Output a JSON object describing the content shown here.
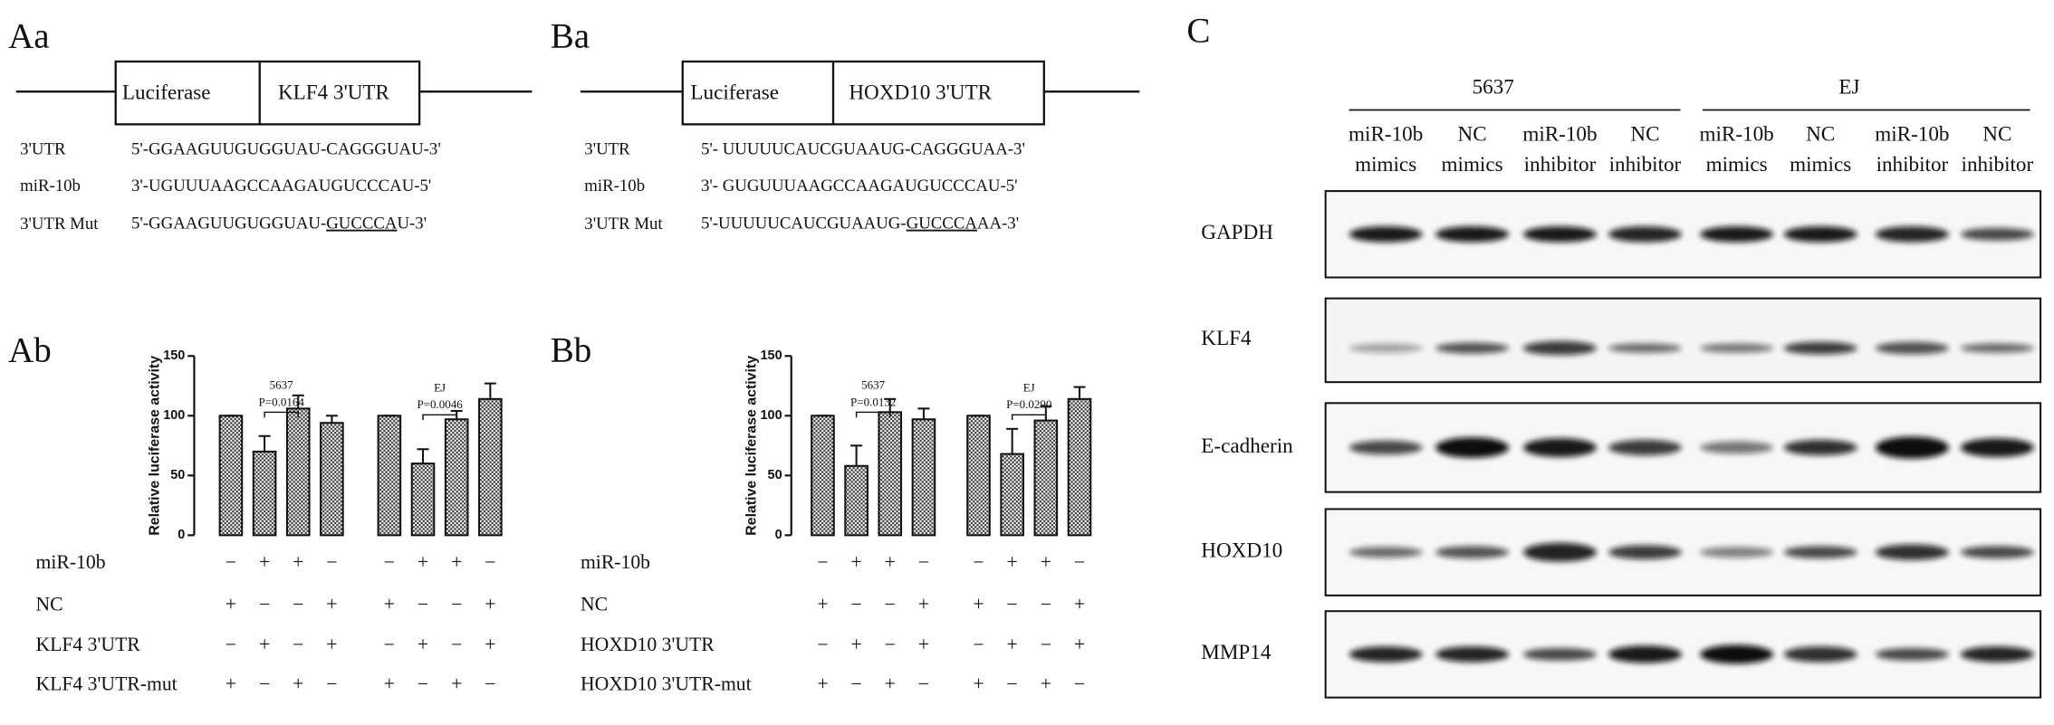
{
  "panel_labels": {
    "Aa": "Aa",
    "Ab": "Ab",
    "Ba": "Ba",
    "Bb": "Bb",
    "C": "C"
  },
  "constructs": [
    {
      "reporter": "Luciferase",
      "utr": "KLF4 3'UTR"
    },
    {
      "reporter": "Luciferase",
      "utr": "HOXD10 3'UTR"
    }
  ],
  "sequences": [
    [
      {
        "label": "3'UTR",
        "parts": [
          "5'-GGAAGUUGUGGUAU-CAGGGUAU-3'"
        ]
      },
      {
        "label": "miR-10b",
        "parts": [
          "3'-UGUUUAAGCCAAGAUGUCCCAU-5'"
        ]
      },
      {
        "label": "3'UTR Mut",
        "parts": [
          "5'-GGAAGUUGUGGUAU-",
          "GUCCCA",
          "U-3'"
        ]
      }
    ],
    [
      {
        "label": "3'UTR",
        "parts": [
          "5'- UUUUUCAUCGUAAUG-CAGGGUAA-3'"
        ]
      },
      {
        "label": "miR-10b",
        "parts": [
          "3'- GUGUUUAAGCCAAGAUGUCCCAU-5'"
        ]
      },
      {
        "label": "3'UTR Mut",
        "parts": [
          "5'-UUUUUCAUCGUAAUG-",
          "GUCCCA",
          "AA-3'"
        ]
      }
    ]
  ],
  "chart_data": [
    {
      "type": "bar",
      "ylabel": "Relative luciferase activity",
      "ylim": [
        0,
        150
      ],
      "yticks": [
        0,
        50,
        100,
        150
      ],
      "values": [
        100,
        70,
        106,
        94,
        100,
        60,
        97,
        114
      ],
      "errors": [
        0,
        13,
        11,
        6,
        0,
        12,
        7,
        13
      ],
      "annotations": [
        "5637",
        "P=0.0164",
        "EJ",
        "P=0.0046"
      ],
      "conditions": [
        {
          "label": "miR-10b",
          "signs": [
            "−",
            "+",
            "+",
            "−",
            "−",
            "+",
            "+",
            "−"
          ]
        },
        {
          "label": "NC",
          "signs": [
            "+",
            "−",
            "−",
            "+",
            "+",
            "−",
            "−",
            "+"
          ]
        },
        {
          "label": "KLF4 3'UTR",
          "signs": [
            "−",
            "+",
            "−",
            "+",
            "−",
            "+",
            "−",
            "+"
          ]
        },
        {
          "label": "KLF4 3'UTR-mut",
          "signs": [
            "+",
            "−",
            "+",
            "−",
            "+",
            "−",
            "+",
            "−"
          ]
        }
      ]
    },
    {
      "type": "bar",
      "ylabel": "Relative luciferase activity",
      "ylim": [
        0,
        150
      ],
      "yticks": [
        0,
        50,
        100,
        150
      ],
      "values": [
        100,
        58,
        103,
        97,
        100,
        68,
        96,
        114
      ],
      "errors": [
        0,
        17,
        11,
        9,
        0,
        21,
        12,
        10
      ],
      "annotations": [
        "5637",
        "P=0.0132",
        "EJ",
        "P=0.0290"
      ],
      "conditions": [
        {
          "label": "miR-10b",
          "signs": [
            "−",
            "+",
            "+",
            "−",
            "−",
            "+",
            "+",
            "−"
          ]
        },
        {
          "label": "NC",
          "signs": [
            "+",
            "−",
            "−",
            "+",
            "+",
            "−",
            "−",
            "+"
          ]
        },
        {
          "label": "HOXD10 3'UTR",
          "signs": [
            "−",
            "+",
            "−",
            "+",
            "−",
            "+",
            "−",
            "+"
          ]
        },
        {
          "label": "HOXD10 3'UTR-mut",
          "signs": [
            "+",
            "−",
            "+",
            "−",
            "+",
            "−",
            "+",
            "−"
          ]
        }
      ]
    }
  ],
  "western": {
    "cell_lines": [
      "5637",
      "EJ"
    ],
    "lanes": [
      [
        "miR-10b",
        "mimics"
      ],
      [
        "NC",
        "mimics"
      ],
      [
        "miR-10b",
        "inhibitor"
      ],
      [
        "NC",
        "inhibitor"
      ],
      [
        "miR-10b",
        "mimics"
      ],
      [
        "NC",
        "mimics"
      ],
      [
        "miR-10b",
        "inhibitor"
      ],
      [
        "NC",
        "inhibitor"
      ]
    ],
    "proteins": [
      "GAPDH",
      "KLF4",
      "E-cadherin",
      "HOXD10",
      "MMP14"
    ]
  }
}
